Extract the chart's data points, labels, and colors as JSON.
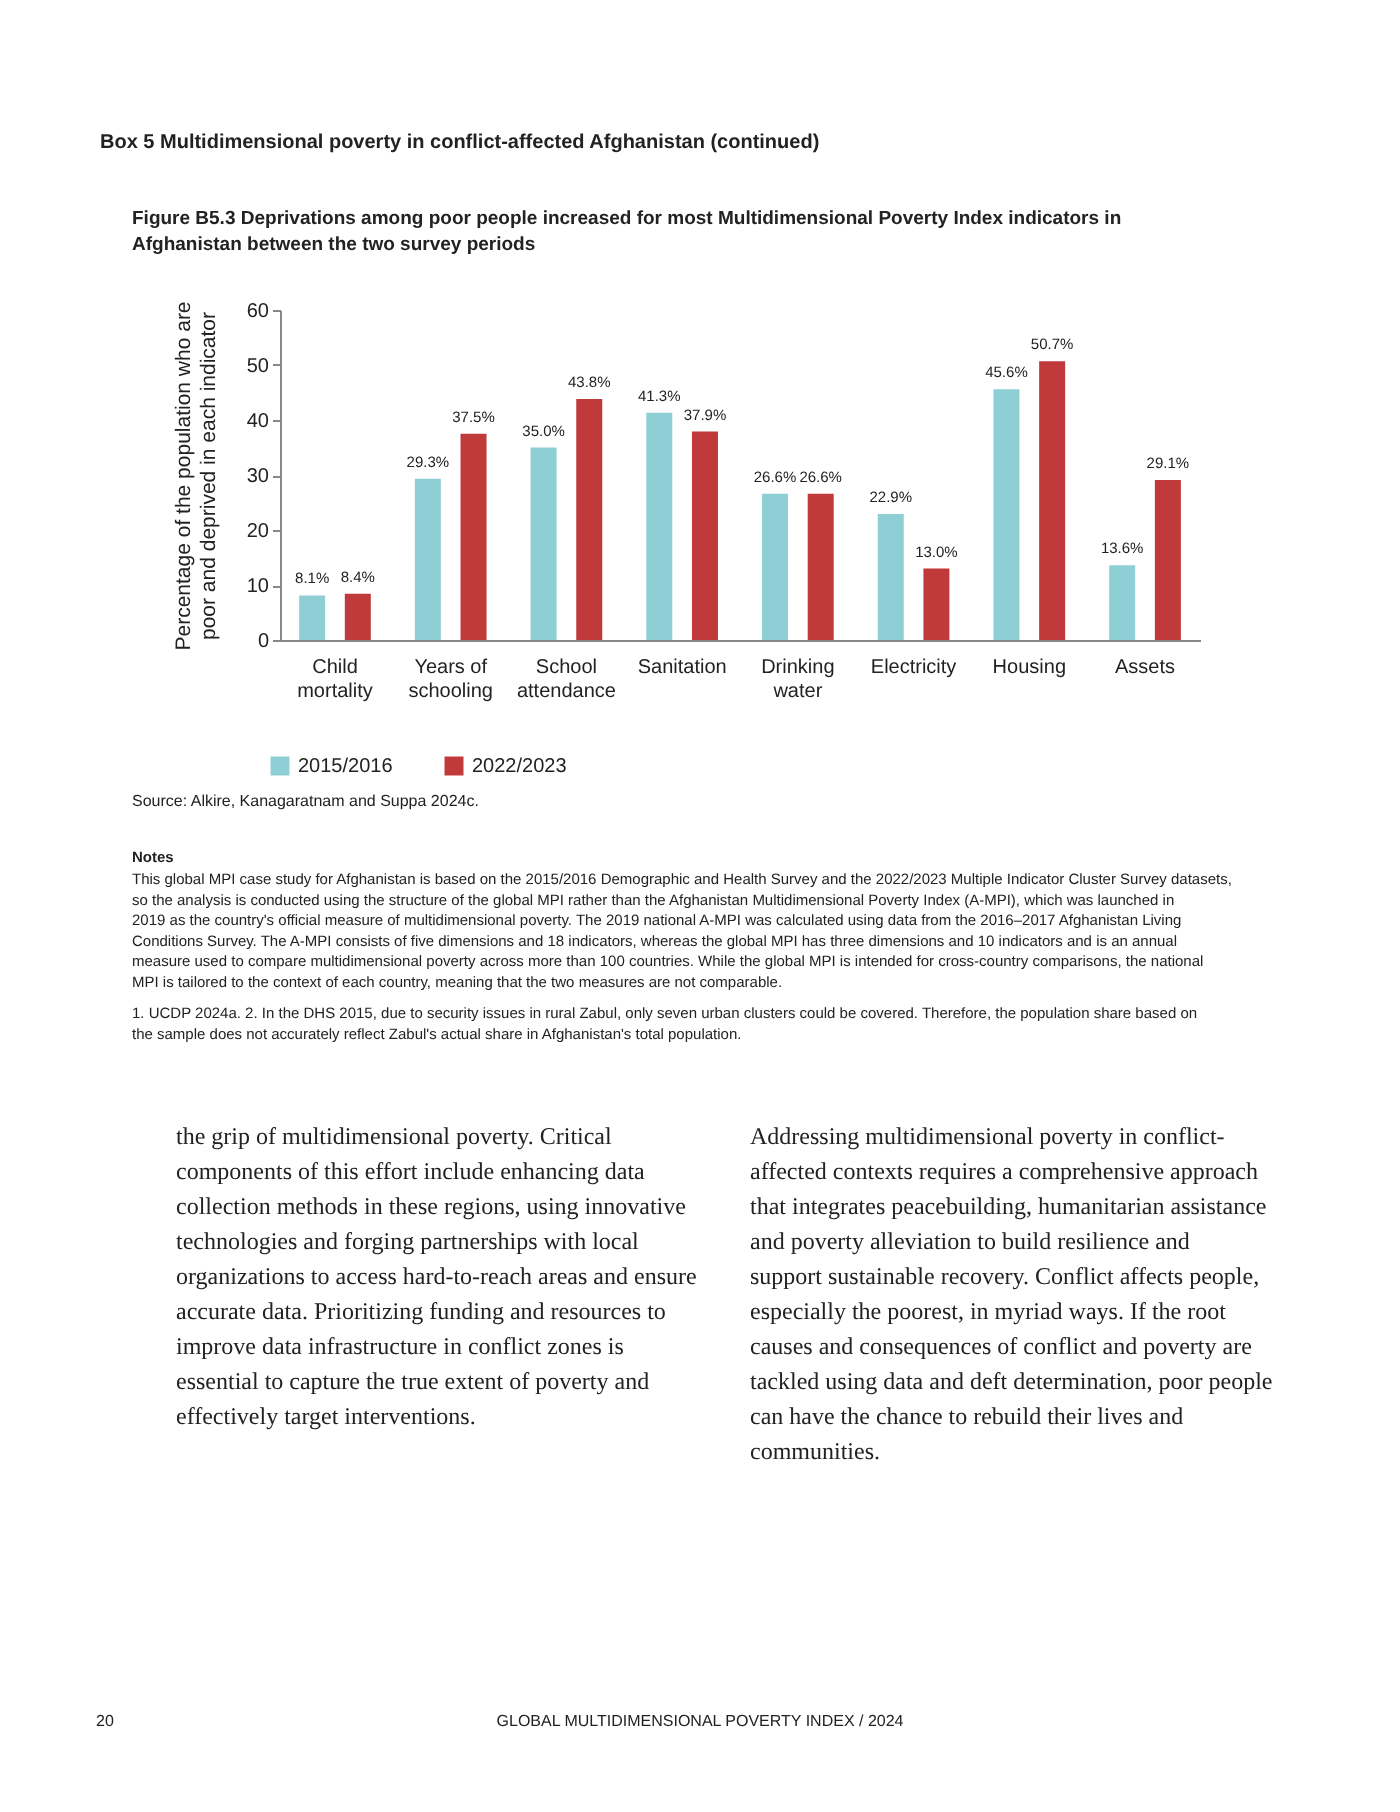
{
  "chart_data": {
    "type": "bar",
    "title": "Figure B5.3 Deprivations among poor people increased for most Multidimensional Poverty Index indicators in Afghanistan between the two survey periods",
    "ylabel": "Percentage of the population who are poor and deprived in each indicator",
    "categories": [
      "Child mortality",
      "Years of schooling",
      "School attendance",
      "Sanitation",
      "Drinking water",
      "Electricity",
      "Housing",
      "Assets"
    ],
    "series": [
      {
        "name": "2015/2016",
        "color": "#8ecfd6",
        "values": [
          8.1,
          29.3,
          35.0,
          41.3,
          26.6,
          22.9,
          45.6,
          13.6
        ],
        "value_labels": [
          "8.1%",
          "29.3%",
          "35.0%",
          "41.3%",
          "26.6%",
          "22.9%",
          "45.6%",
          "13.6%"
        ]
      },
      {
        "name": "2022/2023",
        "color": "#c0393b",
        "values": [
          8.4,
          37.5,
          43.8,
          37.9,
          26.6,
          13.0,
          50.7,
          29.1
        ],
        "value_labels": [
          "8.4%",
          "37.5%",
          "43.8%",
          "37.9%",
          "26.6%",
          "13.0%",
          "50.7%",
          "29.1%"
        ]
      }
    ],
    "ylim": [
      0,
      60
    ],
    "yticks": [
      0,
      10,
      20,
      30,
      40,
      50,
      60
    ],
    "grid": false,
    "legend": "bottom",
    "annotations": [
      "Box 5 Multidimensional poverty in conflict-affected Afghanistan (continued)",
      "Source: Alkire, Kanagaratnam and Suppa 2024c.",
      "Notes",
      "This global MPI case study for Afghanistan is based on the 2015/2016 Demographic and Health Survey and the 2022/2023 Multiple Indicator Cluster Survey datasets, so the analysis is conducted using the structure of the global MPI rather than the Afghanistan Multidimensional Poverty Index (A-MPI), which was launched in 2019 as the country's official measure of multidimensional poverty. The 2019 national A-MPI was calculated using data from the 2016–2017 Afghanistan Living Conditions Survey. The A-MPI consists of five dimensions and 18 indicators, whereas the global MPI has three dimensions and 10 indicators and is an annual measure used to compare multidimensional poverty across more than 100 countries. While the global MPI is intended for cross-country comparisons, the national MPI is tailored to the context of each country, meaning that the two measures are not comparable.",
      "1. UCDP 2024a. 2. In the DHS 2015, due to security issues in rural Zabul, only seven urban clusters could be covered. Therefore, the population share based on the sample does not accurately reflect Zabul's actual share in Afghanistan's total population.",
      "the grip of multidimensional poverty. Critical components of this effort include enhancing data collection methods in these regions, using innovative technologies and forging partnerships with local organizations to access hard-to-reach areas and ensure accurate data. Prioritizing funding and resources to improve data infrastructure in conflict zones is essential to capture the true extent of poverty and effectively target interventions.",
      "Addressing multidimensional poverty in conflict-affected contexts requires a comprehensive approach that integrates peacebuilding, humanitarian assistance and poverty alleviation to build resilience and support sustainable recovery. Conflict affects people, especially the poorest, in myriad ways. If the root causes and consequences of conflict and poverty are tackled using data and deft determination, poor people can have the chance to rebuild their lives and communities.",
      "20",
      "GLOBAL MULTIDIMENSIONAL POVERTY INDEX / 2024"
    ]
  }
}
